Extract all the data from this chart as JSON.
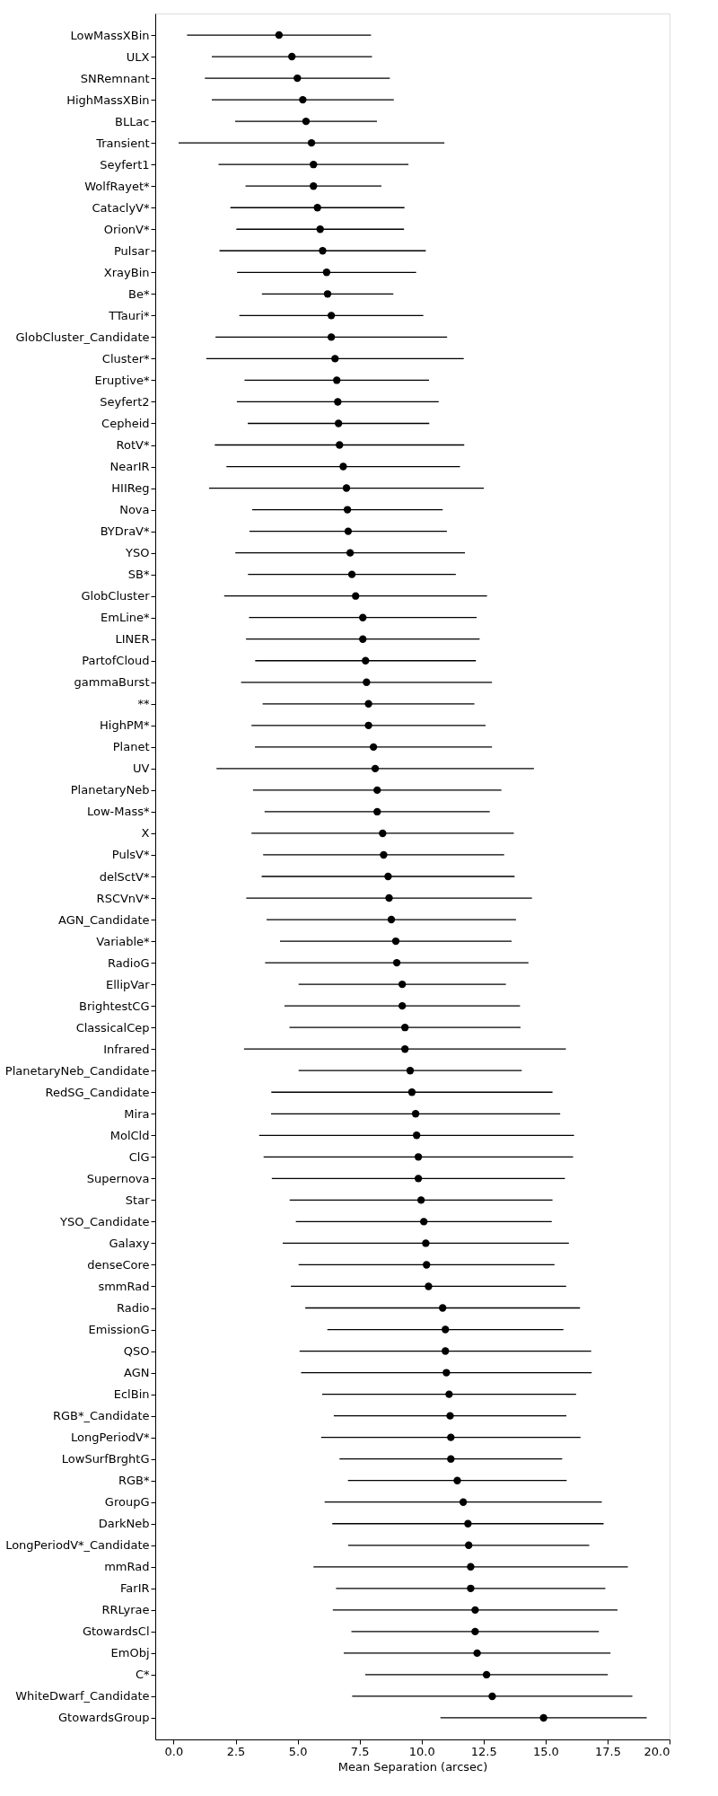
{
  "chart_data": {
    "type": "scatter",
    "orientation": "horizontal",
    "xlabel": "Mean Separation (arcsec)",
    "color": "#000000",
    "marker": "circle",
    "grid": false,
    "xlim": [
      -0.74,
      20
    ],
    "xticks": [
      {
        "value": 0,
        "label": "0.0"
      },
      {
        "value": 2.5,
        "label": "2.5"
      },
      {
        "value": 5,
        "label": "5.0"
      },
      {
        "value": 7.5,
        "label": "7.5"
      },
      {
        "value": 10,
        "label": "10.0"
      },
      {
        "value": 12.5,
        "label": "12.5"
      },
      {
        "value": 15,
        "label": "15.0"
      },
      {
        "value": 17.5,
        "label": "17.5"
      },
      {
        "value": 20,
        "label": "20.0"
      }
    ],
    "categories": [
      "LowMassXBin",
      "ULX",
      "SNRemnant",
      "HighMassXBin",
      "BLLac",
      "Transient",
      "Seyfert1",
      "WolfRayet*",
      "CataclyV*",
      "OrionV*",
      "Pulsar",
      "XrayBin",
      "Be*",
      "TTauri*",
      "GlobCluster_Candidate",
      "Cluster*",
      "Eruptive*",
      "Seyfert2",
      "Cepheid",
      "RotV*",
      "NearIR",
      "HIIReg",
      "Nova",
      "BYDraV*",
      "YSO",
      "SB*",
      "GlobCluster",
      "EmLine*",
      "LINER",
      "PartofCloud",
      "gammaBurst",
      "**",
      "HighPM*",
      "Planet",
      "UV",
      "PlanetaryNeb",
      "Low-Mass*",
      "X",
      "PulsV*",
      "delSctV*",
      "RSCVnV*",
      "AGN_Candidate",
      "Variable*",
      "RadioG",
      "EllipVar",
      "BrightestCG",
      "ClassicalCep",
      "Infrared",
      "PlanetaryNeb_Candidate",
      "RedSG_Candidate",
      "Mira",
      "MolCld",
      "ClG",
      "Supernova",
      "Star",
      "YSO_Candidate",
      "Galaxy",
      "denseCore",
      "smmRad",
      "Radio",
      "EmissionG",
      "QSO",
      "AGN",
      "EclBin",
      "RGB*_Candidate",
      "LongPeriodV*",
      "LowSurfBrghtG",
      "RGB*",
      "GroupG",
      "DarkNeb",
      "LongPeriodV*_Candidate",
      "mmRad",
      "FarIR",
      "RRLyrae",
      "GtowardsCl",
      "EmObj",
      "C*",
      "WhiteDwarf_Candidate",
      "GtowardsGroup"
    ],
    "values": [
      4.25,
      4.77,
      4.99,
      5.21,
      5.34,
      5.56,
      5.64,
      5.64,
      5.8,
      5.91,
      6.01,
      6.17,
      6.21,
      6.36,
      6.36,
      6.51,
      6.58,
      6.62,
      6.65,
      6.69,
      6.84,
      6.97,
      7.01,
      7.04,
      7.12,
      7.19,
      7.34,
      7.63,
      7.63,
      7.74,
      7.78,
      7.86,
      7.86,
      8.06,
      8.13,
      8.21,
      8.21,
      8.43,
      8.47,
      8.65,
      8.69,
      8.78,
      8.96,
      9.0,
      9.22,
      9.22,
      9.33,
      9.33,
      9.54,
      9.61,
      9.76,
      9.8,
      9.87,
      9.87,
      9.98,
      10.09,
      10.17,
      10.2,
      10.28,
      10.85,
      10.96,
      10.96,
      11.0,
      11.11,
      11.15,
      11.18,
      11.18,
      11.44,
      11.68,
      11.87,
      11.9,
      11.98,
      11.98,
      12.16,
      12.16,
      12.24,
      12.62,
      12.85,
      14.92
    ],
    "errors": [
      3.71,
      3.23,
      3.73,
      3.67,
      2.86,
      5.36,
      3.83,
      2.74,
      3.51,
      3.38,
      4.16,
      3.61,
      2.65,
      3.71,
      4.67,
      5.19,
      3.72,
      4.07,
      3.66,
      5.03,
      4.71,
      5.54,
      3.84,
      3.98,
      4.63,
      4.19,
      5.3,
      4.59,
      4.71,
      4.45,
      5.06,
      4.27,
      4.72,
      4.78,
      6.4,
      5.01,
      4.54,
      5.29,
      4.86,
      5.1,
      5.76,
      5.03,
      4.67,
      5.31,
      4.18,
      4.75,
      4.66,
      6.49,
      4.5,
      5.67,
      5.83,
      6.35,
      6.24,
      5.91,
      5.3,
      5.16,
      5.77,
      5.16,
      5.55,
      5.54,
      4.76,
      5.88,
      5.86,
      5.12,
      4.69,
      5.23,
      4.49,
      4.41,
      5.59,
      5.47,
      4.86,
      6.34,
      5.43,
      5.74,
      4.99,
      5.38,
      4.89,
      5.65,
      4.16
    ]
  }
}
